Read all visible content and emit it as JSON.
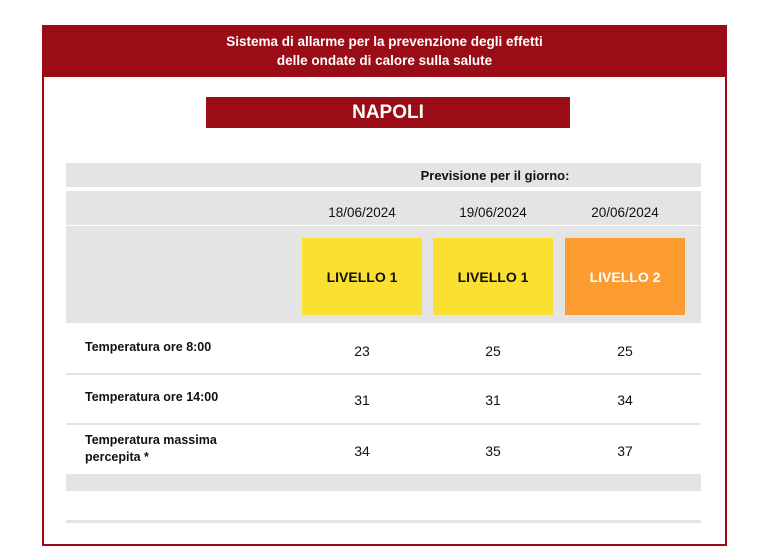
{
  "header": {
    "line1": "Sistema di allarme per la prevenzione degli effetti",
    "line2": "delle ondate di calore sulla salute"
  },
  "city": "NAPOLI",
  "forecast_label": "Previsione per il giorno:",
  "days": [
    {
      "date": "18/06/2024",
      "level": "LIVELLO 1",
      "level_color": "#fbe032",
      "level_text_color": "#111111"
    },
    {
      "date": "19/06/2024",
      "level": "LIVELLO 1",
      "level_color": "#fbe032",
      "level_text_color": "#111111"
    },
    {
      "date": "20/06/2024",
      "level": "LIVELLO 2",
      "level_color": "#fc9c30",
      "level_text_color": "#ffffff"
    }
  ],
  "rows": [
    {
      "label": "Temperatura ore 8:00",
      "values": [
        "23",
        "25",
        "25"
      ]
    },
    {
      "label": "Temperatura ore 14:00",
      "values": [
        "31",
        "31",
        "34"
      ]
    },
    {
      "label_line1": "Temperatura massima",
      "label_line2": "percepita *",
      "values": [
        "34",
        "35",
        "37"
      ]
    }
  ],
  "colors": {
    "brand": "#9b0d16",
    "table_gray": "#e4e4e4"
  }
}
